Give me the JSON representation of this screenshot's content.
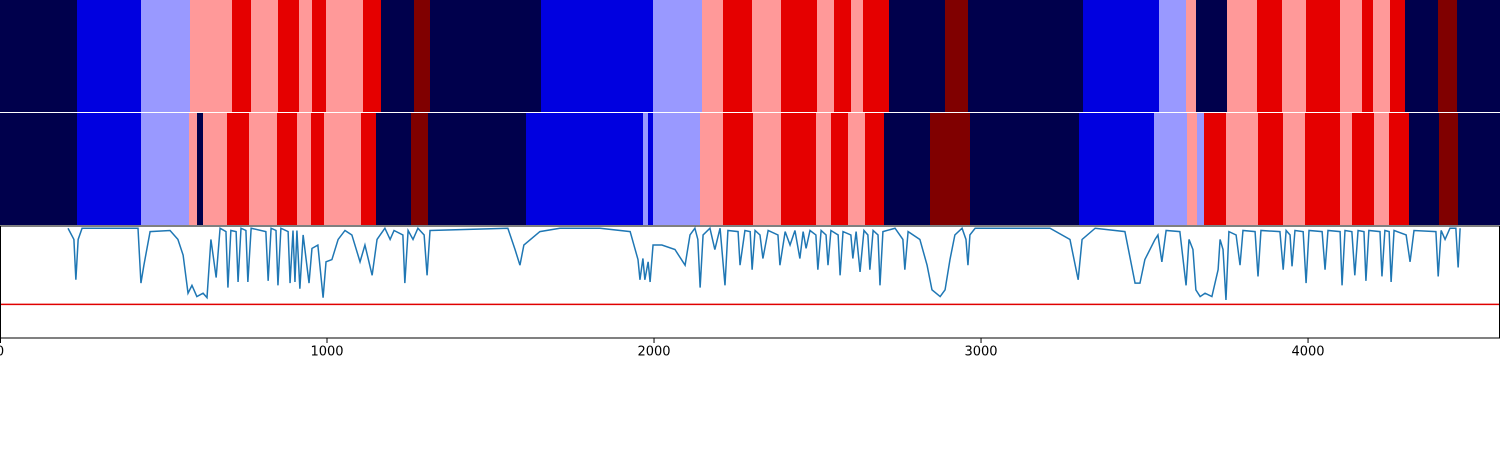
{
  "chart_data": [
    {
      "type": "segments",
      "xlim": [
        0,
        4587
      ],
      "colors": [
        "#00004c",
        "#0000e0",
        "#9999ff",
        "#ff9999",
        "#e50000",
        "#800000"
      ],
      "boundaries": [
        0,
        235,
        431,
        581,
        709,
        768,
        850,
        914,
        954,
        997,
        1110,
        1165,
        1266,
        1315,
        1654,
        1997,
        2147,
        2211,
        2300,
        2388,
        2498,
        2550,
        2602,
        2639,
        2719,
        2890,
        2960,
        3312,
        3544,
        3627,
        3657,
        3752,
        3844,
        3920,
        3994,
        4098,
        4165,
        4199,
        4251,
        4297,
        4398,
        4456,
        4587
      ],
      "states": [
        0,
        1,
        2,
        3,
        4,
        3,
        4,
        3,
        4,
        3,
        4,
        0,
        5,
        0,
        1,
        2,
        3,
        4,
        3,
        4,
        3,
        4,
        3,
        4,
        0,
        5,
        0,
        1,
        2,
        3,
        0,
        3,
        4,
        3,
        4,
        3,
        4,
        3,
        4,
        0,
        5,
        0
      ]
    },
    {
      "type": "segments",
      "xlim": [
        0,
        4587
      ],
      "colors": [
        "#00004c",
        "#0000e0",
        "#9999ff",
        "#ff9999",
        "#e50000",
        "#800000"
      ],
      "boundaries": [
        0,
        235,
        431,
        578,
        602,
        621,
        694,
        761,
        847,
        908,
        951,
        991,
        1104,
        1150,
        1257,
        1309,
        1609,
        1966,
        1982,
        1997,
        2141,
        2211,
        2303,
        2388,
        2495,
        2541,
        2593,
        2645,
        2703,
        2844,
        2966,
        3300,
        3529,
        3630,
        3661,
        3682,
        3749,
        3847,
        3924,
        3991,
        4098,
        4135,
        4202,
        4248,
        4309,
        4401,
        4459,
        4587
      ],
      "states": [
        0,
        1,
        2,
        3,
        0,
        3,
        4,
        3,
        4,
        3,
        4,
        3,
        4,
        0,
        5,
        0,
        1,
        2,
        1,
        2,
        3,
        4,
        3,
        4,
        3,
        4,
        3,
        4,
        0,
        5,
        0,
        1,
        2,
        3,
        2,
        4,
        3,
        4,
        3,
        4,
        3,
        4,
        3,
        4,
        0,
        5,
        0
      ]
    },
    {
      "type": "line",
      "xlim": [
        0,
        4587
      ],
      "ylim": [
        0,
        1
      ],
      "xticks": [
        0,
        1000,
        2000,
        3000,
        4000
      ],
      "color": "#1f77b4",
      "threshold": 0.3,
      "threshold_color": "#e00000",
      "x": [
        208,
        226,
        232,
        239,
        251,
        422,
        431,
        440,
        459,
        520,
        544,
        560,
        575,
        587,
        602,
        621,
        633,
        645,
        661,
        673,
        691,
        697,
        706,
        722,
        728,
        737,
        752,
        758,
        768,
        813,
        820,
        829,
        844,
        850,
        859,
        881,
        887,
        896,
        902,
        908,
        917,
        927,
        945,
        954,
        972,
        988,
        997,
        1015,
        1034,
        1055,
        1076,
        1101,
        1116,
        1138,
        1153,
        1177,
        1193,
        1205,
        1232,
        1238,
        1248,
        1263,
        1278,
        1297,
        1306,
        1315,
        1553,
        1575,
        1590,
        1602,
        1651,
        1712,
        1835,
        1927,
        1951,
        1957,
        1966,
        1972,
        1982,
        1988,
        1997,
        2024,
        2064,
        2095,
        2110,
        2125,
        2134,
        2141,
        2150,
        2171,
        2186,
        2202,
        2217,
        2226,
        2257,
        2263,
        2278,
        2294,
        2300,
        2309,
        2324,
        2333,
        2349,
        2379,
        2385,
        2401,
        2416,
        2431,
        2446,
        2456,
        2465,
        2477,
        2495,
        2501,
        2511,
        2526,
        2532,
        2541,
        2563,
        2569,
        2578,
        2602,
        2608,
        2618,
        2630,
        2642,
        2654,
        2660,
        2670,
        2685,
        2691,
        2700,
        2737,
        2761,
        2767,
        2777,
        2813,
        2835,
        2850,
        2875,
        2890,
        2905,
        2920,
        2942,
        2954,
        2960,
        2966,
        2982,
        3211,
        3272,
        3297,
        3309,
        3349,
        3440,
        3471,
        3486,
        3501,
        3532,
        3541,
        3553,
        3566,
        3608,
        3627,
        3636,
        3648,
        3657,
        3670,
        3685,
        3706,
        3725,
        3731,
        3740,
        3749,
        3758,
        3780,
        3792,
        3801,
        3838,
        3847,
        3856,
        3914,
        3924,
        3933,
        3945,
        3951,
        3960,
        3985,
        3994,
        4003,
        4043,
        4052,
        4061,
        4098,
        4104,
        4113,
        4134,
        4143,
        4153,
        4171,
        4177,
        4186,
        4220,
        4226,
        4235,
        4248,
        4254,
        4263,
        4300,
        4312,
        4324,
        4391,
        4398,
        4407,
        4419,
        4434,
        4452,
        4459,
        4465
      ],
      "values": [
        0.98,
        0.88,
        0.52,
        0.88,
        0.98,
        0.98,
        0.49,
        0.65,
        0.95,
        0.96,
        0.88,
        0.74,
        0.4,
        0.47,
        0.37,
        0.4,
        0.36,
        0.88,
        0.54,
        0.98,
        0.95,
        0.45,
        0.96,
        0.95,
        0.5,
        0.98,
        0.96,
        0.5,
        0.98,
        0.95,
        0.51,
        0.98,
        0.96,
        0.47,
        0.98,
        0.95,
        0.49,
        0.96,
        0.5,
        0.96,
        0.44,
        0.92,
        0.49,
        0.8,
        0.83,
        0.36,
        0.68,
        0.7,
        0.88,
        0.96,
        0.92,
        0.68,
        0.83,
        0.56,
        0.88,
        0.98,
        0.88,
        0.96,
        0.92,
        0.49,
        0.96,
        0.88,
        0.98,
        0.92,
        0.56,
        0.96,
        0.98,
        0.79,
        0.65,
        0.83,
        0.95,
        0.98,
        0.98,
        0.95,
        0.7,
        0.52,
        0.71,
        0.52,
        0.68,
        0.5,
        0.83,
        0.83,
        0.79,
        0.65,
        0.92,
        0.98,
        0.88,
        0.45,
        0.92,
        0.98,
        0.79,
        0.98,
        0.47,
        0.96,
        0.95,
        0.65,
        0.96,
        0.95,
        0.61,
        0.96,
        0.92,
        0.71,
        0.96,
        0.92,
        0.65,
        0.95,
        0.83,
        0.96,
        0.71,
        0.95,
        0.8,
        0.96,
        0.92,
        0.61,
        0.96,
        0.92,
        0.65,
        0.96,
        0.92,
        0.56,
        0.95,
        0.92,
        0.71,
        0.95,
        0.59,
        0.96,
        0.92,
        0.61,
        0.96,
        0.92,
        0.47,
        0.95,
        0.98,
        0.88,
        0.61,
        0.95,
        0.88,
        0.65,
        0.43,
        0.37,
        0.43,
        0.7,
        0.92,
        0.98,
        0.88,
        0.65,
        0.92,
        0.98,
        0.98,
        0.88,
        0.52,
        0.88,
        0.98,
        0.95,
        0.49,
        0.49,
        0.7,
        0.88,
        0.92,
        0.68,
        0.96,
        0.95,
        0.47,
        0.88,
        0.79,
        0.43,
        0.37,
        0.4,
        0.37,
        0.61,
        0.88,
        0.79,
        0.34,
        0.95,
        0.92,
        0.65,
        0.96,
        0.95,
        0.55,
        0.96,
        0.95,
        0.61,
        0.96,
        0.92,
        0.64,
        0.96,
        0.95,
        0.49,
        0.96,
        0.95,
        0.61,
        0.96,
        0.95,
        0.47,
        0.96,
        0.95,
        0.56,
        0.96,
        0.95,
        0.51,
        0.96,
        0.95,
        0.55,
        0.96,
        0.95,
        0.5,
        0.96,
        0.92,
        0.68,
        0.96,
        0.95,
        0.55,
        0.96,
        0.88,
        0.98,
        0.98,
        0.63,
        0.98
      ]
    }
  ]
}
